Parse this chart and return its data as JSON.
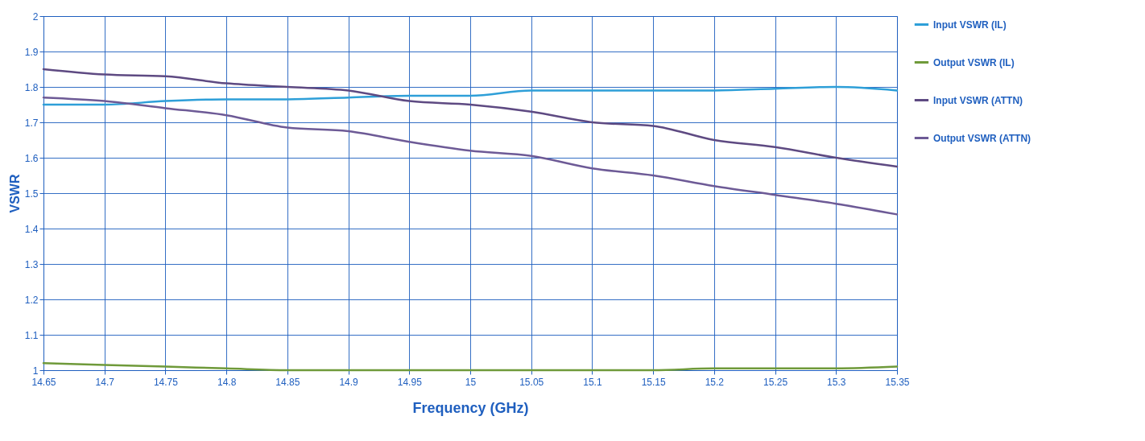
{
  "chart_data": {
    "type": "line",
    "xlabel": "Frequency (GHz)",
    "ylabel": "VSWR",
    "x": [
      14.65,
      14.7,
      14.75,
      14.8,
      14.85,
      14.9,
      14.95,
      15,
      15.05,
      15.1,
      15.15,
      15.2,
      15.25,
      15.3,
      15.35
    ],
    "xlim": [
      14.65,
      15.35
    ],
    "xticks": [
      14.65,
      14.7,
      14.75,
      14.8,
      14.85,
      14.9,
      14.95,
      15,
      15.05,
      15.1,
      15.15,
      15.2,
      15.25,
      15.3,
      15.35
    ],
    "ylim": [
      1,
      2
    ],
    "yticks": [
      1,
      1.1,
      1.2,
      1.3,
      1.4,
      1.5,
      1.6,
      1.7,
      1.8,
      1.9,
      2
    ],
    "grid": true,
    "legend": "right",
    "marker": "none",
    "line_style": "solid",
    "series": [
      {
        "name": "Input VSWR (IL)",
        "color": "#2e9fd8",
        "values": [
          1.75,
          1.75,
          1.76,
          1.765,
          1.765,
          1.77,
          1.775,
          1.775,
          1.79,
          1.79,
          1.79,
          1.79,
          1.795,
          1.8,
          1.79
        ]
      },
      {
        "name": "Output VSWR (IL)",
        "color": "#6f9a3a",
        "values": [
          1.02,
          1.015,
          1.01,
          1.005,
          1.0,
          1.0,
          1.0,
          1.0,
          1.0,
          1.0,
          1.0,
          1.005,
          1.005,
          1.005,
          1.01
        ]
      },
      {
        "name": "Input VSWR (ATTN)",
        "color": "#5e4a82",
        "values": [
          1.85,
          1.835,
          1.83,
          1.81,
          1.8,
          1.79,
          1.76,
          1.75,
          1.73,
          1.7,
          1.69,
          1.65,
          1.63,
          1.6,
          1.575
        ]
      },
      {
        "name": "Output VSWR (ATTN)",
        "color": "#6d5a96",
        "values": [
          1.77,
          1.76,
          1.74,
          1.72,
          1.685,
          1.675,
          1.645,
          1.62,
          1.605,
          1.57,
          1.55,
          1.52,
          1.495,
          1.47,
          1.44
        ]
      }
    ]
  }
}
